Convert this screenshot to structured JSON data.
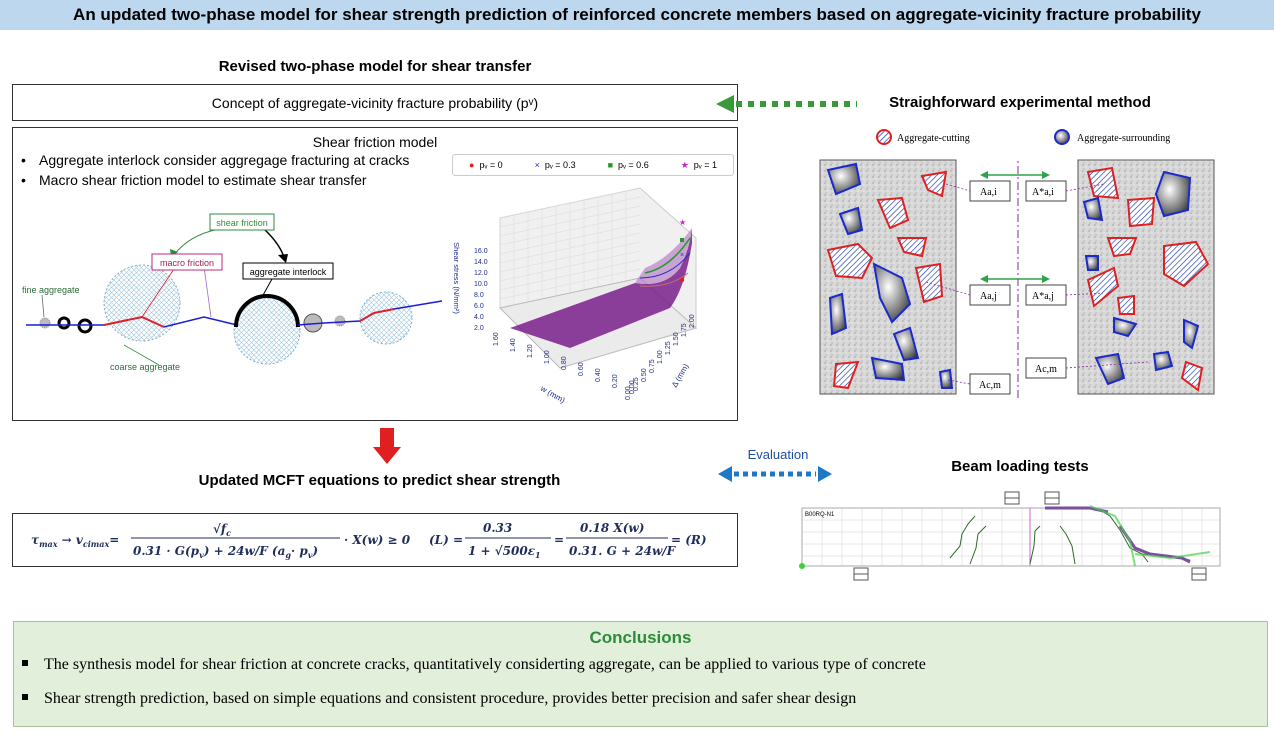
{
  "title": "An updated two-phase model for shear strength prediction of reinforced concrete members based on aggregate-vicinity fracture probability",
  "left": {
    "section_title": "Revised two-phase model for shear transfer",
    "concept_label": "Concept of aggregate-vicinity fracture probability (p",
    "concept_sub": "v",
    "concept_end": ")",
    "sfm_title": "Shear friction model",
    "bullets": [
      "Aggregate interlock consider aggregage fracturing at cracks",
      "Macro shear friction model to estimate shear transfer"
    ],
    "diagram_labels": {
      "shear_friction": "shear friction",
      "macro_friction": "macro friction",
      "aggregate_interlock": "aggregate interlock",
      "fine_aggregate": "fine aggregate",
      "coarse_aggregate": "coarse aggregate"
    },
    "legend": [
      "pᵥ = 0",
      "pᵥ = 0.3",
      "pᵥ = 0.6",
      "pᵥ = 1"
    ],
    "surface_plot": {
      "zlabel": "Shear stress (N/mm²)",
      "xlabel": "w (mm)",
      "ylabel": "Δ (mm)",
      "z_ticks": [
        "2.0",
        "4.0",
        "6.0",
        "8.0",
        "10.0",
        "12.0",
        "14.0",
        "16.0"
      ],
      "w_ticks": [
        "1.60",
        "1.40",
        "1.20",
        "1.00",
        "0.80",
        "0.60",
        "0.40",
        "0.20",
        "0.00"
      ],
      "delta_ticks": [
        "0.00",
        "0.25",
        "0.50",
        "0.75",
        "1.00",
        "1.25",
        "1.50",
        "1.75",
        "2.00"
      ]
    },
    "mcft_title": "Updated MCFT equations to predict shear strength",
    "eq1": "τmax → vcimax = √fc / (0.31 · G(pv) + 24w/F(ag·pv)) · X(w) ≥ 0",
    "eq2": "(L) = 0.33 / (1 + √500ε1) = 0.18 X(w) / (0.31.G + 24w/F) = (R)"
  },
  "right": {
    "method_title": "Straighforward experimental method",
    "legend_cut": "Aggregate-cutting",
    "legend_sur": "Aggregate-surrounding",
    "area_labels_left": [
      "Aa,i",
      "Aa,j",
      "Ac,m"
    ],
    "area_labels_right": [
      "A*a,i",
      "A*a,j",
      "Ac,m"
    ],
    "beam_title": "Beam loading tests",
    "beam_id": "B00RQ-N1",
    "evaluation": "Evaluation"
  },
  "conclusions": {
    "title": "Conclusions",
    "items": [
      "The synthesis model for shear friction at concrete cracks, quantitatively considerting aggregate, can be applied to various type of concrete",
      "Shear strength prediction, based on simple equations and consistent procedure, provides better precision and safer shear design"
    ]
  },
  "colors": {
    "title_bg": "#bdd7ee",
    "arrow_green": "#3a9a3a",
    "arrow_blue": "#1f77c8",
    "arrow_red": "#e02020",
    "surface_purple": "#7a1f8c",
    "conclusion_bg": "#e2efda"
  }
}
